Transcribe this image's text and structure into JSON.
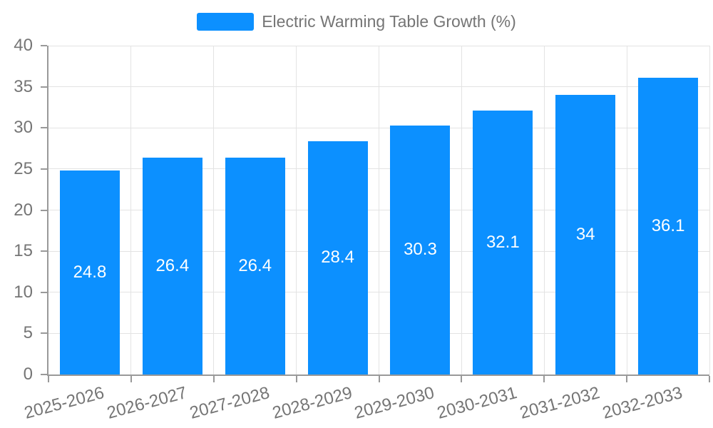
{
  "chart_data": {
    "type": "bar",
    "title": "",
    "legend_label": "Electric Warming Table Growth (%)",
    "legend_position": "top-center",
    "categories": [
      "2025-2026",
      "2026-2027",
      "2027-2028",
      "2028-2029",
      "2029-2030",
      "2030-2031",
      "2031-2032",
      "2032-2033"
    ],
    "values": [
      24.8,
      26.4,
      26.4,
      28.4,
      30.3,
      32.1,
      34,
      36.1
    ],
    "bar_value_labels": [
      "24.8",
      "26.4",
      "26.4",
      "28.4",
      "30.3",
      "32.1",
      "34",
      "36.1"
    ],
    "xlabel": "",
    "ylabel": "",
    "ylim": [
      0,
      40
    ],
    "yticks": [
      0,
      5,
      10,
      15,
      20,
      25,
      30,
      35,
      40
    ],
    "grid": true,
    "x_label_rotation_deg": -15,
    "colors": {
      "bar": "#0C90FF",
      "bar_label_text": "#FFFFFF",
      "axis_line": "#999999",
      "gridline": "#E3E3E3",
      "axis_text": "#757575",
      "legend_text": "#757575",
      "background": "#FFFFFF"
    }
  }
}
